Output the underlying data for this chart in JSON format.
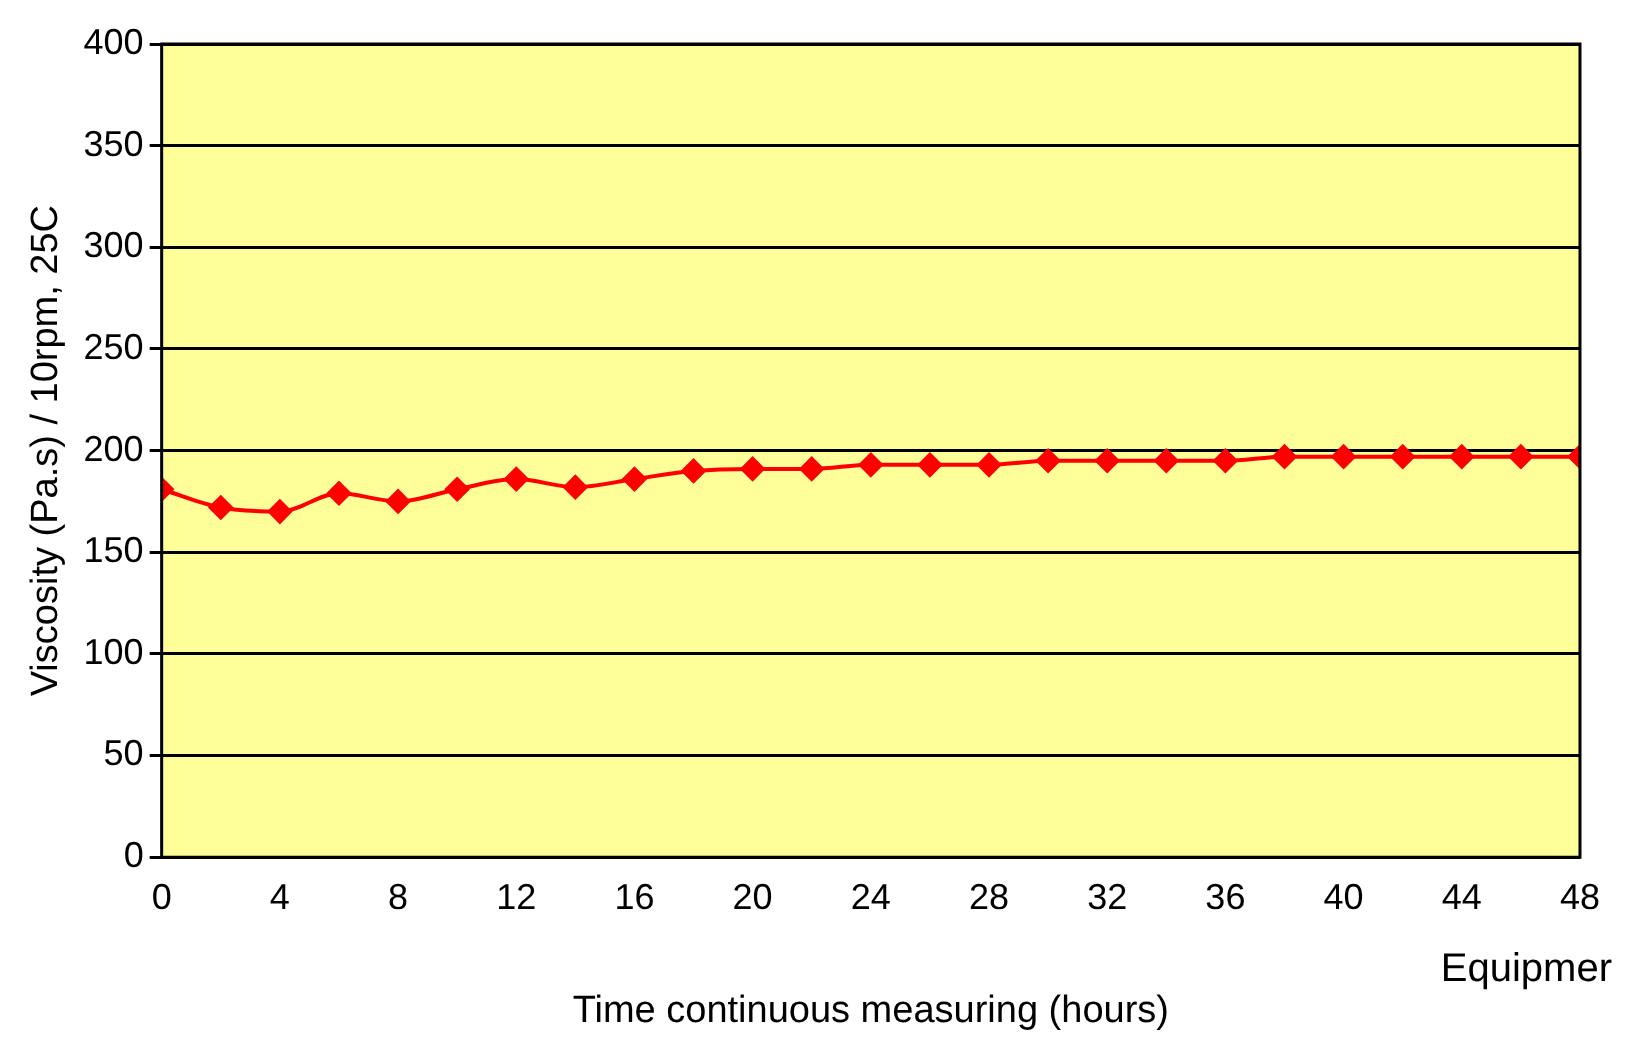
{
  "chart_data": {
    "type": "line",
    "xlabel": "Time continuous measuring (hours)",
    "ylabel": "Viscosity (Pa.s) / 10rpm, 25C",
    "x": [
      0,
      2,
      4,
      6,
      8,
      10,
      12,
      14,
      16,
      18,
      20,
      22,
      24,
      26,
      28,
      30,
      32,
      34,
      36,
      38,
      40,
      42,
      44,
      46,
      48
    ],
    "series": [
      {
        "color": "#ff0000",
        "values": [
          181,
          172,
          170,
          179,
          175,
          181,
          186,
          182,
          186,
          190,
          191,
          191,
          193,
          193,
          193,
          195,
          195,
          195,
          195,
          197,
          197,
          197,
          197,
          197,
          197
        ]
      }
    ],
    "xlim": [
      0,
      48
    ],
    "xticks": [
      0,
      4,
      8,
      12,
      16,
      20,
      24,
      28,
      32,
      36,
      40,
      44,
      48
    ],
    "ylim": [
      0,
      400
    ],
    "yticks": [
      0,
      50,
      100,
      150,
      200,
      250,
      300,
      350,
      400
    ],
    "grid": "y",
    "legend": false,
    "marker": "diamond",
    "line_style": "solid",
    "annotations": [
      "Equipmer"
    ]
  }
}
